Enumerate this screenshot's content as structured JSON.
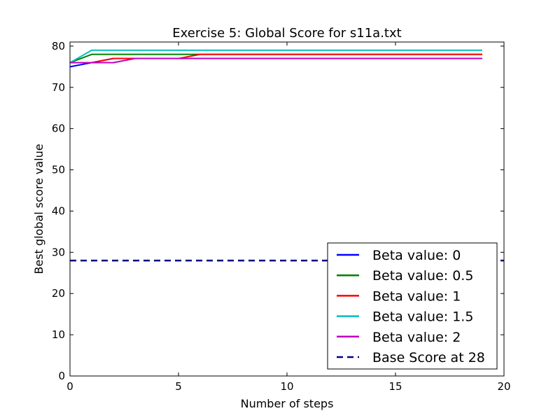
{
  "chart_data": {
    "type": "line",
    "title": "Exercise 5: Global Score for s11a.txt",
    "xlabel": "Number of steps",
    "ylabel": "Best global score value",
    "xlim": [
      0,
      20
    ],
    "ylim": [
      0,
      81
    ],
    "xticks": [
      0,
      5,
      10,
      15,
      20
    ],
    "yticks": [
      0,
      10,
      20,
      30,
      40,
      50,
      60,
      70,
      80
    ],
    "grid": false,
    "legend_position": "lower-right",
    "x": [
      0,
      1,
      2,
      3,
      4,
      5,
      6,
      7,
      8,
      9,
      10,
      11,
      12,
      13,
      14,
      15,
      16,
      17,
      18,
      19
    ],
    "series": [
      {
        "name": "Beta value: 0",
        "color": "#0000ff",
        "style": "solid",
        "values": [
          75,
          76,
          77,
          77,
          77,
          77,
          77,
          77,
          77,
          77,
          77,
          77,
          77,
          77,
          77,
          77,
          77,
          77,
          77,
          77
        ]
      },
      {
        "name": "Beta value: 0.5",
        "color": "#008000",
        "style": "solid",
        "values": [
          76,
          78,
          78,
          78,
          78,
          78,
          78,
          78,
          78,
          78,
          78,
          78,
          78,
          78,
          78,
          78,
          78,
          78,
          78,
          78
        ]
      },
      {
        "name": "Beta value: 1",
        "color": "#ff0000",
        "style": "solid",
        "values": [
          76,
          76,
          77,
          77,
          77,
          77,
          78,
          78,
          78,
          78,
          78,
          78,
          78,
          78,
          78,
          78,
          78,
          78,
          78,
          78
        ]
      },
      {
        "name": "Beta value: 1.5",
        "color": "#00bfbf",
        "style": "solid",
        "values": [
          76,
          79,
          79,
          79,
          79,
          79,
          79,
          79,
          79,
          79,
          79,
          79,
          79,
          79,
          79,
          79,
          79,
          79,
          79,
          79
        ]
      },
      {
        "name": "Beta value: 2",
        "color": "#bf00bf",
        "style": "solid",
        "values": [
          76,
          76,
          76,
          77,
          77,
          77,
          77,
          77,
          77,
          77,
          77,
          77,
          77,
          77,
          77,
          77,
          77,
          77,
          77,
          77
        ]
      }
    ],
    "baseline": {
      "name": "Base Score at 28",
      "value": 28,
      "color": "#00007f",
      "style": "dashed"
    }
  }
}
